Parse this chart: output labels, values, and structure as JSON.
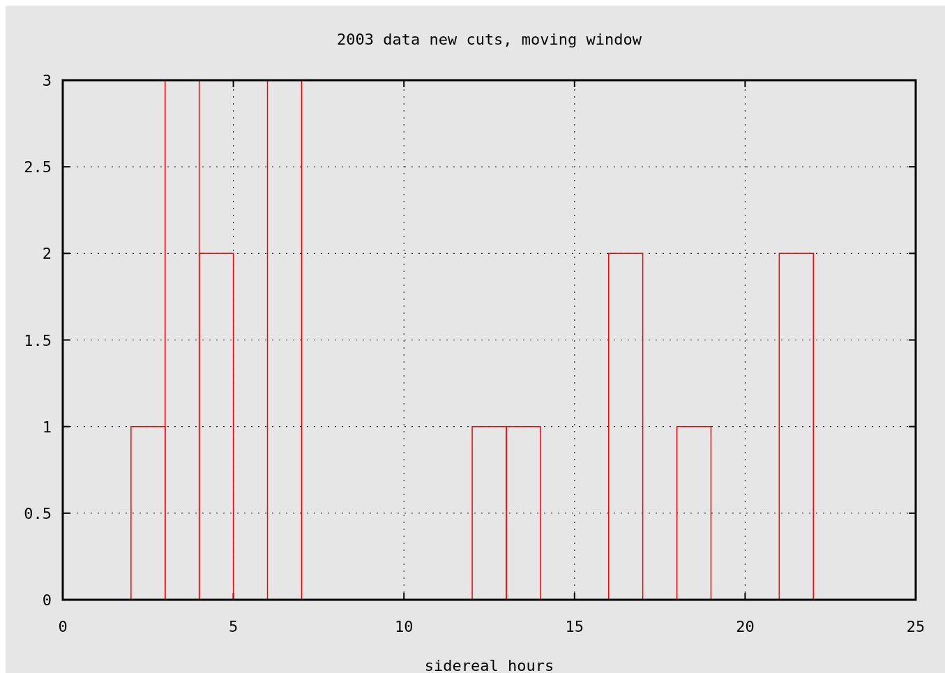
{
  "chart_data": {
    "type": "histogram",
    "title": "2003 data new cuts, moving window",
    "xlabel": "sidereal hours",
    "bins": [
      0,
      1,
      2,
      3,
      4,
      5,
      6,
      7,
      8,
      9,
      10,
      11,
      12,
      13,
      14,
      15,
      16,
      17,
      18,
      19,
      20,
      21,
      22,
      23,
      24
    ],
    "values": [
      0,
      0,
      1,
      3,
      2,
      0,
      3,
      0,
      0,
      0,
      0,
      0,
      1,
      1,
      0,
      0,
      2,
      0,
      1,
      0,
      0,
      2,
      0,
      0
    ],
    "color": "#ff0000",
    "xlim": [
      0,
      25
    ],
    "xticks": [
      0,
      5,
      10,
      15,
      20,
      25
    ],
    "ylim": [
      0,
      3
    ],
    "yticks": [
      0,
      0.5,
      1,
      1.5,
      2,
      2.5,
      3
    ],
    "grid": true
  }
}
